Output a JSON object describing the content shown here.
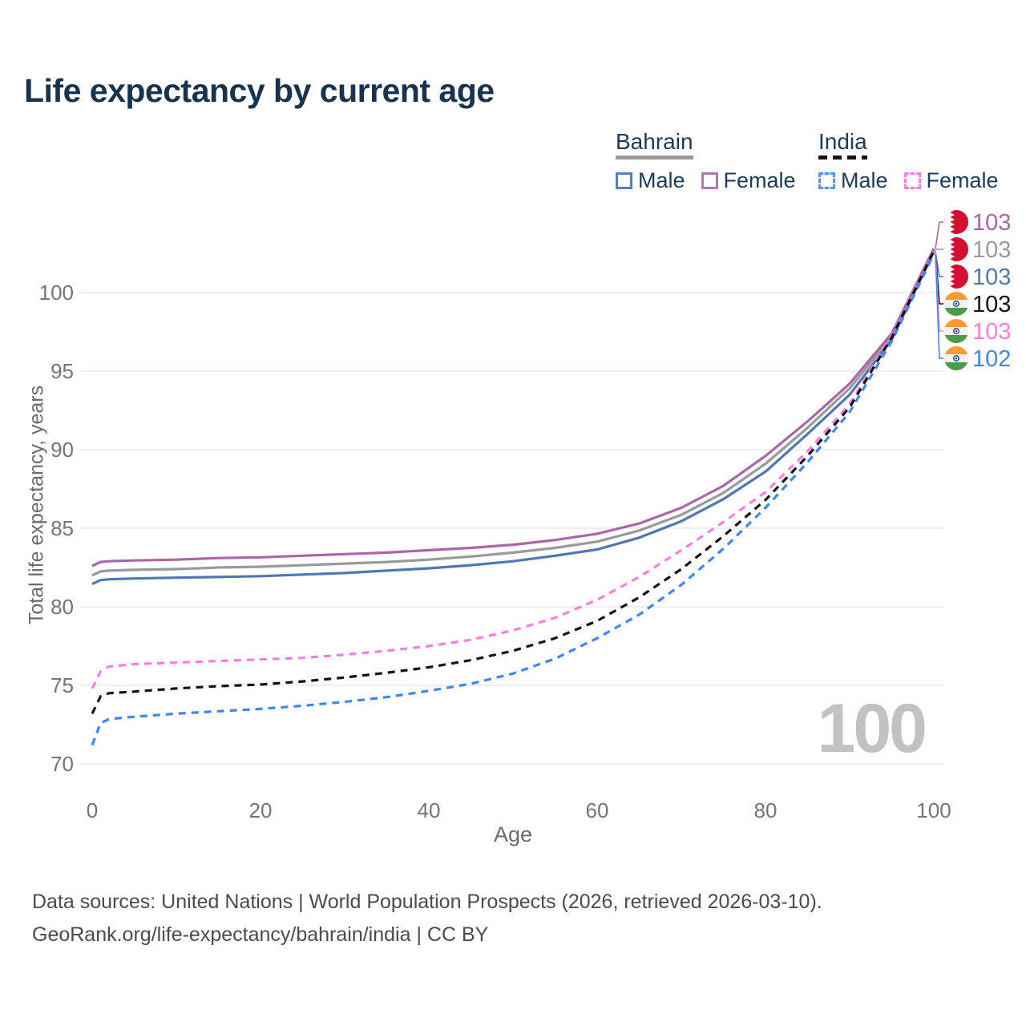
{
  "title": "Life expectancy by current age",
  "legend": {
    "bahrain": {
      "name": "Bahrain",
      "male_label": "Male",
      "female_label": "Female",
      "male_color": "#5b7fb8",
      "female_color": "#b277b2",
      "line_style": "solid",
      "underline_color": "#9a9a9a"
    },
    "india": {
      "name": "India",
      "male_label": "Male",
      "female_label": "Female",
      "male_color": "#4d94ff",
      "female_color": "#ff7ddf",
      "line_style": "dashed",
      "underline_color": "#141414"
    }
  },
  "chart_data": {
    "type": "line",
    "title": "Life expectancy by current age",
    "xlabel": "Age",
    "ylabel": "Total life expectancy, years",
    "xlim": [
      0,
      100
    ],
    "ylim": [
      70,
      103.5
    ],
    "xticks": [
      0,
      20,
      40,
      60,
      80,
      100
    ],
    "yticks": [
      70,
      75,
      80,
      85,
      90,
      95,
      100
    ],
    "grid": "horizontal",
    "watermark": "100",
    "x": [
      0,
      1,
      2,
      5,
      10,
      15,
      20,
      25,
      30,
      35,
      40,
      45,
      50,
      55,
      60,
      65,
      70,
      75,
      80,
      85,
      90,
      95,
      100
    ],
    "series": [
      {
        "name": "Bahrain Male",
        "country": "Bahrain",
        "sex": "Male",
        "style": "solid",
        "color": "#4f77b7",
        "end_label": "103",
        "flag": "bahrain",
        "values": [
          81.45,
          81.7,
          81.75,
          81.8,
          81.85,
          81.9,
          81.95,
          82.05,
          82.15,
          82.3,
          82.45,
          82.65,
          82.9,
          83.25,
          83.65,
          84.4,
          85.45,
          86.85,
          88.6,
          91.0,
          93.5,
          97.0,
          102.6
        ]
      },
      {
        "name": "Bahrain",
        "country": "Bahrain",
        "sex": "Both",
        "style": "solid",
        "color": "#9a9a9a",
        "end_label": "103",
        "flag": "bahrain",
        "values": [
          82.0,
          82.25,
          82.3,
          82.35,
          82.4,
          82.5,
          82.55,
          82.65,
          82.75,
          82.85,
          83.0,
          83.2,
          83.45,
          83.75,
          84.15,
          84.85,
          85.85,
          87.25,
          89.1,
          91.4,
          93.9,
          97.2,
          102.75
        ]
      },
      {
        "name": "Bahrain Female",
        "country": "Bahrain",
        "sex": "Female",
        "style": "solid",
        "color": "#ab65ab",
        "end_label": "103",
        "flag": "bahrain",
        "values": [
          82.6,
          82.85,
          82.9,
          82.95,
          83.0,
          83.1,
          83.15,
          83.25,
          83.35,
          83.45,
          83.6,
          83.75,
          83.95,
          84.25,
          84.65,
          85.3,
          86.3,
          87.7,
          89.6,
          91.8,
          94.2,
          97.4,
          102.8
        ]
      },
      {
        "name": "India Male",
        "country": "India",
        "sex": "Male",
        "style": "dashed",
        "color": "#3d87f8",
        "end_label": "102",
        "flag": "india",
        "values": [
          71.2,
          72.6,
          72.85,
          73.0,
          73.2,
          73.35,
          73.5,
          73.7,
          73.95,
          74.25,
          74.65,
          75.1,
          75.75,
          76.7,
          78.0,
          79.5,
          81.4,
          83.7,
          86.3,
          89.2,
          92.4,
          96.9,
          102.45
        ]
      },
      {
        "name": "India Female",
        "country": "India",
        "sex": "Female",
        "style": "dashed",
        "color": "#ff7ddf",
        "end_label": "103",
        "flag": "india",
        "values": [
          74.8,
          75.9,
          76.2,
          76.35,
          76.45,
          76.55,
          76.65,
          76.75,
          76.95,
          77.2,
          77.5,
          77.9,
          78.5,
          79.3,
          80.45,
          81.9,
          83.6,
          85.4,
          87.3,
          89.9,
          92.9,
          97.3,
          102.7
        ]
      },
      {
        "name": "India",
        "country": "India",
        "sex": "Both",
        "style": "dashed",
        "color": "#141414",
        "end_label": "103",
        "flag": "india",
        "values": [
          73.2,
          74.3,
          74.5,
          74.6,
          74.8,
          74.95,
          75.05,
          75.25,
          75.5,
          75.8,
          76.15,
          76.6,
          77.2,
          78.0,
          79.1,
          80.6,
          82.4,
          84.5,
          86.8,
          89.6,
          92.7,
          97.15,
          102.65
        ]
      }
    ],
    "end_label_order": [
      "Bahrain Female",
      "Bahrain",
      "Bahrain Male",
      "India",
      "India Female",
      "India Male"
    ]
  },
  "footer": {
    "line1": "Data sources: United Nations | World Population Prospects (2026, retrieved 2026-03-10).",
    "line2": "GeoRank.org/life-expectancy/bahrain/india | CC BY"
  }
}
